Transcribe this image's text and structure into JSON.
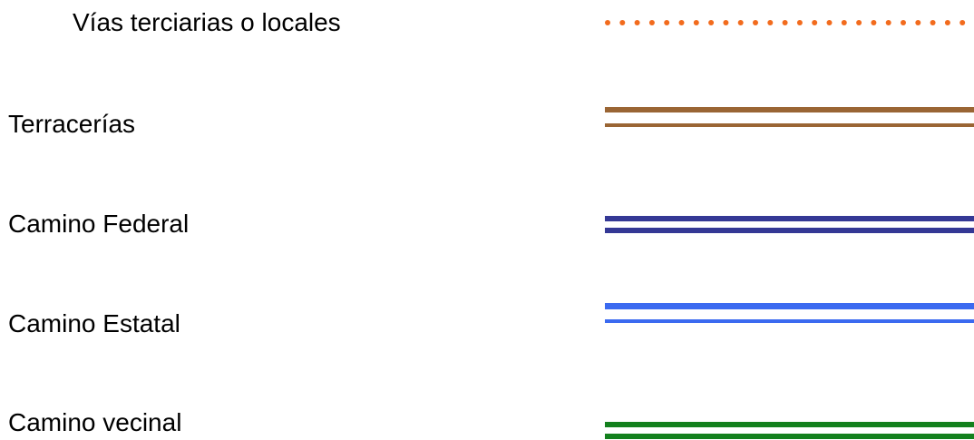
{
  "legend": {
    "items": [
      {
        "label": "Vías terciarias o locales",
        "symbol": "dotted-line-icon",
        "color": "#f26b1d",
        "style": "dotted"
      },
      {
        "label": "Terracerías",
        "symbol": "double-line-icon",
        "color": "#9a6534",
        "style": "double"
      },
      {
        "label": "Camino Federal",
        "symbol": "double-line-icon",
        "color": "#343895",
        "style": "double"
      },
      {
        "label": "Camino Estatal",
        "symbol": "double-line-icon",
        "color": "#3b6af0",
        "style": "double"
      },
      {
        "label": "Camino vecinal",
        "symbol": "double-line-icon",
        "color": "#13801d",
        "style": "double"
      }
    ]
  }
}
